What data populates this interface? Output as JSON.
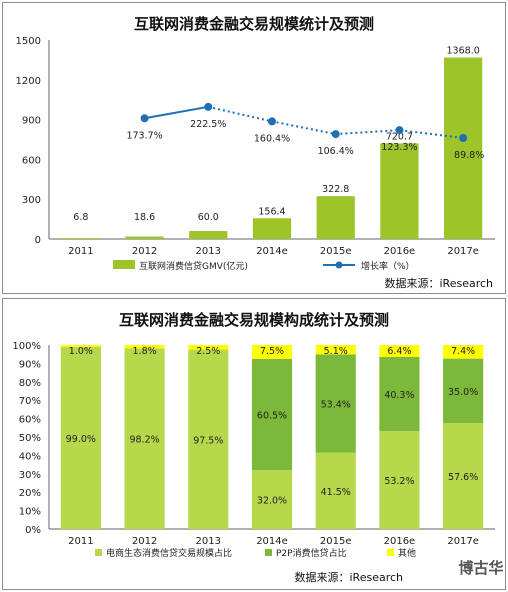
{
  "chart_data": [
    {
      "type": "bar",
      "title": "互联网消费金融交易规模统计及预测",
      "categories": [
        "2011",
        "2012",
        "2013",
        "2014e",
        "2015e",
        "2016e",
        "2017e"
      ],
      "ylim": [
        0,
        1500
      ],
      "yticks": [
        "0",
        "300",
        "600",
        "900",
        "1200",
        "1500"
      ],
      "series": [
        {
          "name": "互联网消费信贷GMV(亿元)",
          "values": [
            6.8,
            18.6,
            60.0,
            156.4,
            322.8,
            720.7,
            1368.0
          ],
          "labels": [
            "6.8",
            "18.6",
            "60.0",
            "156.4",
            "322.8",
            "720.7",
            "1368.0"
          ],
          "color": "#9dc428"
        },
        {
          "name": "增长率（%）",
          "type": "line",
          "values": [
            null,
            173.7,
            222.5,
            160.4,
            106.4,
            123.3,
            89.8
          ],
          "labels": [
            "",
            "173.7%",
            "222.5%",
            "160.4%",
            "106.4%",
            "123.3%",
            "89.8%"
          ],
          "color": "#1f6fb5"
        }
      ],
      "legend_position": "bottom",
      "source": "数据来源：iResearch"
    },
    {
      "type": "bar",
      "stacked": true,
      "title": "互联网消费金融交易规模构成统计及预测",
      "categories": [
        "2011",
        "2012",
        "2013",
        "2014e",
        "2015e",
        "2016e",
        "2017e"
      ],
      "ylim": [
        0,
        100
      ],
      "yticks": [
        "0%",
        "10%",
        "20%",
        "30%",
        "40%",
        "50%",
        "60%",
        "70%",
        "80%",
        "90%",
        "100%"
      ],
      "series": [
        {
          "name": "电商生态消费信贷交易规模占比",
          "values": [
            99.0,
            98.2,
            97.5,
            32.0,
            41.5,
            53.2,
            57.6
          ],
          "labels": [
            "99.0%",
            "98.2%",
            "97.5%",
            "32.0%",
            "41.5%",
            "53.2%",
            "57.6%"
          ],
          "color": "#b7d84b"
        },
        {
          "name": "P2P消费信贷占比",
          "values": [
            0,
            0,
            0,
            60.5,
            53.4,
            40.3,
            35.0
          ],
          "labels": [
            "",
            "",
            "",
            "60.5%",
            "53.4%",
            "40.3%",
            "35.0%"
          ],
          "color": "#7cb93a"
        },
        {
          "name": "其他",
          "values": [
            1.0,
            1.8,
            2.5,
            7.5,
            5.1,
            6.4,
            7.4
          ],
          "labels": [
            "1.0%",
            "1.8%",
            "2.5%",
            "7.5%",
            "5.1%",
            "6.4%",
            "7.4%"
          ],
          "color": "#ffff00"
        }
      ],
      "legend_position": "bottom",
      "source": "数据来源：iResearch",
      "watermark": "博古华"
    }
  ]
}
